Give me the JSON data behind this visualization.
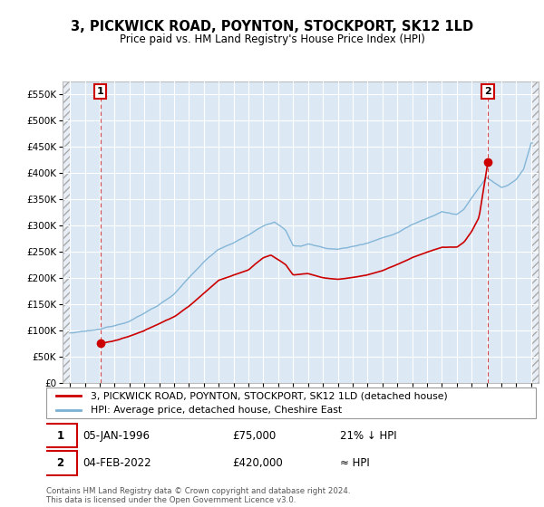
{
  "title": "3, PICKWICK ROAD, POYNTON, STOCKPORT, SK12 1LD",
  "subtitle": "Price paid vs. HM Land Registry's House Price Index (HPI)",
  "legend_line1": "3, PICKWICK ROAD, POYNTON, STOCKPORT, SK12 1LD (detached house)",
  "legend_line2": "HPI: Average price, detached house, Cheshire East",
  "ann1_date": "05-JAN-1996",
  "ann1_price": "£75,000",
  "ann1_hpi": "21% ↓ HPI",
  "ann1_x": 1996.04,
  "ann1_y": 75000,
  "ann2_date": "04-FEB-2022",
  "ann2_price": "£420,000",
  "ann2_hpi": "≈ HPI",
  "ann2_x": 2022.09,
  "ann2_y": 420000,
  "price_color": "#cc0000",
  "hpi_color": "#7ab0d4",
  "xmin": 1993.5,
  "xmax": 2025.5,
  "ymin": 0,
  "ymax": 575000,
  "yticks": [
    0,
    50000,
    100000,
    150000,
    200000,
    250000,
    300000,
    350000,
    400000,
    450000,
    500000,
    550000
  ],
  "footer": "Contains HM Land Registry data © Crown copyright and database right 2024.\nThis data is licensed under the Open Government Licence v3.0.",
  "bg_main": "#dce9f5",
  "bg_hatch": "#e8e8e8"
}
